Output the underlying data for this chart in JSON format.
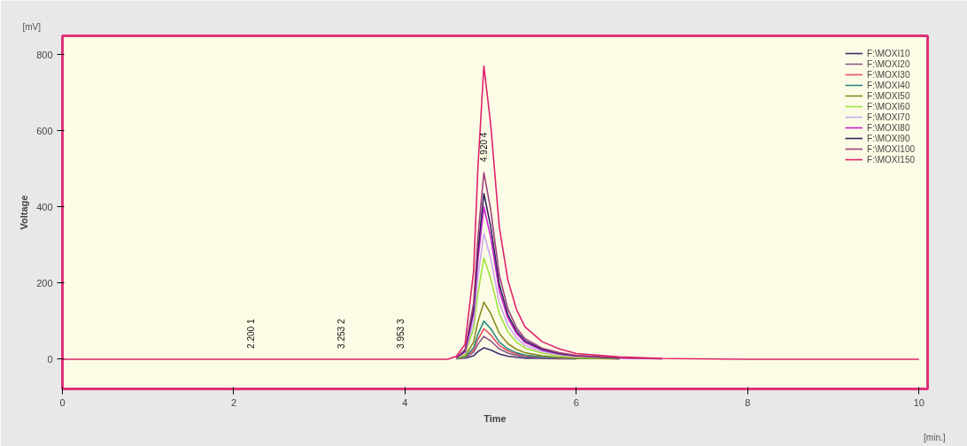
{
  "chart_data": {
    "type": "line",
    "xlabel": "Time",
    "ylabel": "Voltage",
    "x": [
      0,
      2,
      2.2,
      2.4,
      3.253,
      3.953,
      4.5,
      4.6,
      4.7,
      4.8,
      4.85,
      4.92,
      5.0,
      5.1,
      5.2,
      5.3,
      5.4,
      5.6,
      5.8,
      6.0,
      6.5,
      7.0,
      8.0,
      10.0
    ],
    "xlim": [
      0,
      10.1
    ],
    "ylim": [
      -78,
      849
    ],
    "xticks": [
      0,
      2,
      4,
      6,
      8,
      10
    ],
    "yticks": [
      0,
      200,
      400,
      600,
      800
    ],
    "grid": false,
    "legend": "top right",
    "marker": "none",
    "line_style": "solid",
    "series": [
      {
        "name": "F:\\MOXI10",
        "color": "#3a2e6e",
        "values": [
          null,
          null,
          null,
          null,
          null,
          null,
          null,
          null,
          2,
          9,
          20,
          30,
          24,
          14,
          8,
          5,
          3,
          2,
          1,
          1,
          null,
          null,
          null,
          null
        ]
      },
      {
        "name": "F:\\MOXI20",
        "color": "#8c5a8c",
        "values": [
          null,
          null,
          null,
          null,
          null,
          null,
          null,
          1,
          3,
          18,
          39,
          60,
          48,
          27,
          16,
          10,
          7,
          4,
          2,
          1,
          null,
          null,
          null,
          null
        ]
      },
      {
        "name": "F:\\MOXI30",
        "color": "#e8506a",
        "values": [
          null,
          null,
          null,
          null,
          null,
          null,
          null,
          1,
          4,
          24,
          52,
          80,
          64,
          36,
          22,
          14,
          9,
          5,
          3,
          2,
          1,
          null,
          null,
          null
        ]
      },
      {
        "name": "F:\\MOXI40",
        "color": "#2a8a80",
        "values": [
          null,
          null,
          null,
          null,
          null,
          null,
          null,
          1,
          5,
          30,
          65,
          100,
          80,
          45,
          27,
          17,
          11,
          6,
          4,
          2,
          1,
          null,
          null,
          null
        ]
      },
      {
        "name": "F:\\MOXI50",
        "color": "#8a8a20",
        "values": [
          null,
          null,
          null,
          null,
          null,
          null,
          null,
          2,
          8,
          45,
          98,
          150,
          120,
          68,
          41,
          26,
          17,
          9,
          5,
          3,
          1,
          null,
          null,
          null
        ]
      },
      {
        "name": "F:\\MOXI60",
        "color": "#a0e040",
        "values": [
          null,
          null,
          null,
          null,
          null,
          null,
          null,
          3,
          13,
          80,
          172,
          265,
          212,
          119,
          72,
          45,
          29,
          16,
          9,
          5,
          2,
          null,
          null,
          null
        ]
      },
      {
        "name": "F:\\MOXI70",
        "color": "#c8a8f0",
        "values": [
          null,
          null,
          null,
          null,
          null,
          null,
          null,
          3,
          17,
          99,
          215,
          330,
          264,
          149,
          89,
          56,
          36,
          20,
          12,
          7,
          null,
          null,
          null,
          null
        ]
      },
      {
        "name": "F:\\MOXI80",
        "color": "#d020d0",
        "values": [
          null,
          null,
          null,
          null,
          null,
          null,
          null,
          4,
          20,
          120,
          260,
          400,
          320,
          180,
          108,
          68,
          44,
          24,
          14,
          8,
          3,
          1,
          null,
          null
        ]
      },
      {
        "name": "F:\\MOXI90",
        "color": "#302060",
        "values": [
          null,
          null,
          null,
          null,
          null,
          null,
          null,
          4,
          22,
          131,
          283,
          435,
          348,
          196,
          117,
          74,
          48,
          26,
          15,
          9,
          3,
          null,
          null,
          null
        ]
      },
      {
        "name": "F:\\MOXI100",
        "color": "#a04080",
        "values": [
          null,
          null,
          null,
          null,
          null,
          null,
          null,
          5,
          25,
          147,
          319,
          490,
          392,
          221,
          132,
          83,
          54,
          29,
          17,
          10,
          4,
          1,
          null,
          null
        ]
      },
      {
        "name": "F:\\MOXI150",
        "color": "#e0206a",
        "values": [
          0,
          0,
          0,
          0,
          0,
          0,
          0,
          8,
          39,
          231,
          501,
          770,
          616,
          347,
          208,
          131,
          85,
          46,
          27,
          15,
          6,
          2,
          0,
          0
        ]
      }
    ],
    "annotations": [
      "[mV]",
      "[min.]",
      {
        "text": "2.200  1",
        "x": 2.2,
        "y": 0
      },
      {
        "text": "3.253  2",
        "x": 3.253,
        "y": 0
      },
      {
        "text": "3.953  3",
        "x": 3.953,
        "y": 0
      },
      {
        "text": "4.920  4",
        "x": 4.92,
        "y": 490
      }
    ]
  }
}
